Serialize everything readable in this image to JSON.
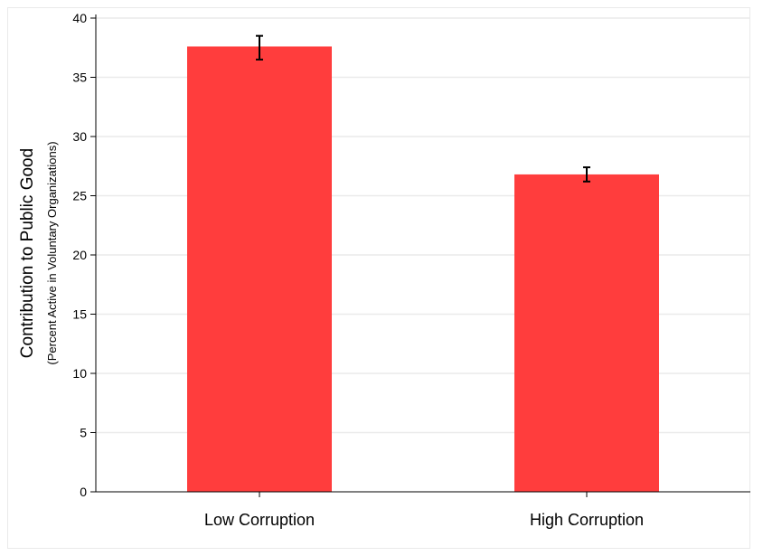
{
  "chart_data": {
    "type": "bar",
    "title": "",
    "xlabel": "",
    "ylabel": "Contribution to Public Good",
    "ylabel_sub": "(Percent Active in Voluntary Organizations)",
    "categories": [
      "Low Corruption",
      "High Corruption"
    ],
    "values": [
      37.6,
      26.8
    ],
    "error_low": [
      36.5,
      26.2
    ],
    "error_high": [
      38.5,
      27.4
    ],
    "ylim": [
      0,
      40
    ],
    "yticks": [
      0,
      5,
      10,
      15,
      20,
      25,
      30,
      35,
      40
    ],
    "grid": true,
    "bar_color": "#ff3d3d",
    "grid_color": "#eaeaea",
    "errorbar_color": "#000000"
  }
}
